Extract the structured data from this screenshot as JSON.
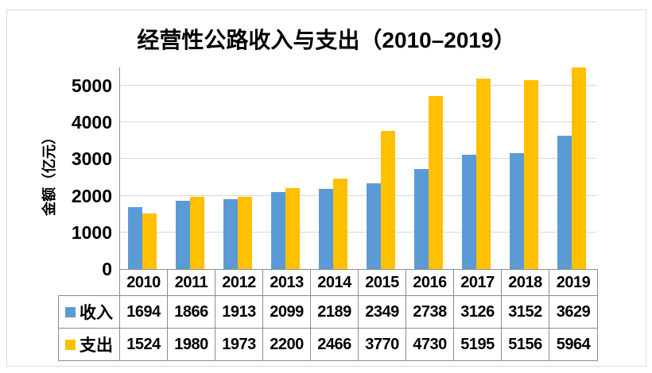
{
  "chart_data": {
    "type": "bar",
    "title": "经营性公路收入与支出（2010–2019）",
    "ylabel": "金额（亿元）",
    "xlabel": "",
    "categories": [
      "2010",
      "2011",
      "2012",
      "2013",
      "2014",
      "2015",
      "2016",
      "2017",
      "2018",
      "2019"
    ],
    "series": [
      {
        "name": "收入",
        "color": "#5B9BD5",
        "values": [
          1694,
          1866,
          1913,
          2099,
          2189,
          2349,
          2738,
          3126,
          3152,
          3629
        ]
      },
      {
        "name": "支出",
        "color": "#FFC000",
        "values": [
          1524,
          1980,
          1973,
          2200,
          2466,
          3770,
          4730,
          5195,
          5156,
          5964
        ]
      }
    ],
    "y_ticks": [
      0,
      1000,
      2000,
      3000,
      4000,
      5000
    ],
    "ylim": [
      0,
      5500
    ],
    "grid": true,
    "legend_position": "data-table-below-plot",
    "note_clipping": "2019 支出 bar (5964) exceeds axis max and is clipped at plot top"
  },
  "colors": {
    "income_series": "#5B9BD5",
    "expense_series": "#FFC000",
    "gridline": "#D9D9D9",
    "axis_and_table_border": "#8C8C8C",
    "card_border": "#D9D9D9",
    "text": "#000000",
    "background": "#FFFFFF"
  }
}
